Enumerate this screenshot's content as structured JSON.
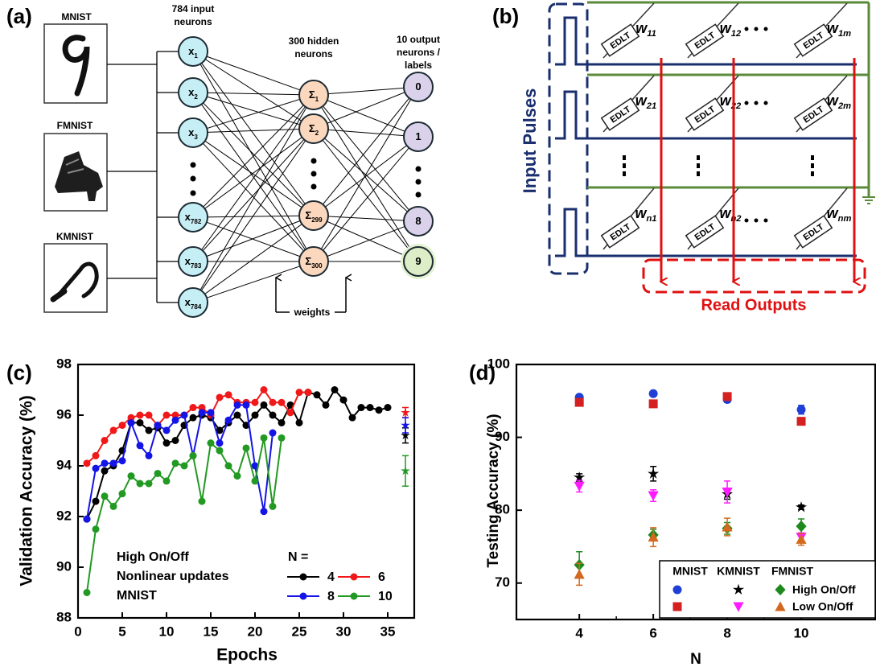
{
  "panel_a": {
    "label": "(a)",
    "images": [
      {
        "title": "MNIST"
      },
      {
        "title": "FMNIST"
      },
      {
        "title": "KMNIST"
      }
    ],
    "layers": [
      {
        "title": [
          "784 input",
          "neurons"
        ],
        "nodes": [
          {
            "base": "x",
            "sub": "1"
          },
          {
            "base": "x",
            "sub": "2"
          },
          {
            "base": "x",
            "sub": "3"
          },
          {
            "base": "x",
            "sub": "782"
          },
          {
            "base": "x",
            "sub": "783"
          },
          {
            "base": "x",
            "sub": "784"
          }
        ]
      },
      {
        "title": [
          "300 hidden",
          "neurons"
        ],
        "nodes": [
          {
            "base": "Σ",
            "sub": "1"
          },
          {
            "base": "Σ",
            "sub": "2"
          },
          {
            "base": "Σ",
            "sub": "299"
          },
          {
            "base": "Σ",
            "sub": "300"
          }
        ]
      },
      {
        "title": [
          "10 output",
          "neurons /",
          "labels"
        ],
        "nodes": [
          {
            "base": "0"
          },
          {
            "base": "1"
          },
          {
            "base": "8"
          },
          {
            "base": "9"
          }
        ]
      }
    ],
    "weights_label": "weights"
  },
  "panel_b": {
    "label": "(b)",
    "input_label": "Input Pulses",
    "output_label": "Read Outputs",
    "device_label": "EDLT",
    "weights": [
      [
        {
          "base": "w",
          "sub": "11"
        },
        {
          "base": "w",
          "sub": "12"
        },
        {
          "base": "w",
          "sub": "1m"
        }
      ],
      [
        {
          "base": "w",
          "sub": "21"
        },
        {
          "base": "w",
          "sub": "22"
        },
        {
          "base": "w",
          "sub": "2m"
        }
      ],
      [
        {
          "base": "w",
          "sub": "n1"
        },
        {
          "base": "w",
          "sub": "n2"
        },
        {
          "base": "w",
          "sub": "nm"
        }
      ]
    ]
  },
  "chart_data": [
    {
      "type": "line",
      "panel_label": "(c)",
      "xlabel": "Epochs",
      "ylabel": "Validation Accuracy (%)",
      "xlim": [
        0,
        38
      ],
      "xticks": [
        0,
        5,
        10,
        15,
        20,
        25,
        30,
        35
      ],
      "ylim": [
        88,
        98
      ],
      "yticks": [
        88,
        90,
        92,
        94,
        96,
        98
      ],
      "annotations": [
        "High On/Off",
        "Nonlinear updates",
        "MNIST"
      ],
      "legend_title": "N =",
      "final_x": 37,
      "series": [
        {
          "name": "4",
          "color": "#000000",
          "x": [
            1,
            2,
            3,
            4,
            5,
            6,
            7,
            8,
            9,
            10,
            11,
            12,
            13,
            14,
            15,
            16,
            17,
            18,
            19,
            20,
            21,
            22,
            23,
            24,
            25,
            26,
            27,
            28,
            29,
            30,
            31,
            32,
            33,
            34,
            35
          ],
          "values": [
            91.9,
            92.6,
            93.8,
            94.0,
            94.6,
            95.7,
            95.7,
            95.4,
            95.5,
            94.9,
            95.0,
            95.6,
            95.9,
            96.0,
            95.9,
            95.4,
            95.7,
            96.0,
            95.6,
            96.0,
            96.4,
            96.0,
            95.7,
            96.4,
            95.7,
            96.9,
            96.8,
            96.4,
            97.0,
            96.6,
            95.9,
            96.3,
            96.3,
            96.2,
            96.3
          ],
          "final": 95.2,
          "final_error": 0.3
        },
        {
          "name": "6",
          "color": "#f01818",
          "x": [
            1,
            2,
            3,
            4,
            5,
            6,
            7,
            8,
            9,
            10,
            11,
            12,
            13,
            14,
            15,
            16,
            17,
            18,
            19,
            20,
            21,
            22,
            23,
            24,
            25,
            26
          ],
          "values": [
            94.1,
            94.4,
            95.0,
            95.4,
            95.6,
            95.9,
            96.0,
            96.0,
            95.6,
            96.0,
            96.0,
            96.0,
            96.3,
            96.3,
            96.0,
            96.7,
            96.8,
            96.5,
            96.5,
            96.5,
            97.0,
            96.5,
            96.5,
            96.1,
            96.9,
            96.9
          ],
          "final": 96.1,
          "final_error": 0.2
        },
        {
          "name": "8",
          "color": "#1414e6",
          "x": [
            1,
            2,
            3,
            4,
            5,
            6,
            7,
            8,
            9,
            10,
            11,
            12,
            13,
            14,
            15,
            16,
            17,
            18,
            19,
            20,
            21,
            22
          ],
          "values": [
            91.9,
            93.9,
            94.1,
            94.1,
            94.2,
            95.7,
            94.8,
            94.4,
            95.6,
            95.4,
            95.8,
            96.0,
            94.4,
            96.1,
            96.1,
            94.9,
            95.8,
            96.4,
            96.4,
            94.0,
            92.2,
            95.3
          ],
          "final": 95.6,
          "final_error": 0.3
        },
        {
          "name": "10",
          "color": "#229922",
          "x": [
            1,
            2,
            3,
            4,
            5,
            6,
            7,
            8,
            9,
            10,
            11,
            12,
            13,
            14,
            15,
            16,
            17,
            18,
            19,
            20,
            21,
            22,
            23
          ],
          "values": [
            89.0,
            91.5,
            92.8,
            92.4,
            92.9,
            93.6,
            93.3,
            93.3,
            93.7,
            93.4,
            94.1,
            94.0,
            94.4,
            92.6,
            94.9,
            94.6,
            94.0,
            93.6,
            94.7,
            93.4,
            95.1,
            92.4,
            95.1
          ],
          "final": 93.8,
          "final_error": 0.6
        }
      ]
    },
    {
      "type": "scatter",
      "panel_label": "(d)",
      "xlabel": "N",
      "ylabel": "Testing Accuracy (%)",
      "xlim": [
        2.3,
        12
      ],
      "xticks": [
        4,
        6,
        8,
        10
      ],
      "xminorticks": [
        5,
        7,
        9
      ],
      "ylim": [
        65,
        100
      ],
      "yticks": [
        70,
        80,
        90,
        100
      ],
      "x": [
        4,
        6,
        8,
        10
      ],
      "legend": {
        "columns": [
          "MNIST",
          "KMNIST",
          "FMNIST"
        ],
        "rows": [
          "High On/Off",
          "Low On/Off"
        ]
      },
      "series": [
        [
          {
            "marker": "circle",
            "color": "#1f3fd6",
            "values": [
              95.5,
              96.0,
              95.2,
              93.8
            ],
            "errors": [
              0.3,
              0.3,
              0.4,
              0.6
            ]
          },
          {
            "marker": "star",
            "color": "#000000",
            "values": [
              84.5,
              85.0,
              82.2,
              80.4
            ],
            "errors": [
              0.5,
              1.0,
              0.7,
              0.3
            ]
          },
          {
            "marker": "diamond",
            "color": "#1e8a1e",
            "values": [
              72.5,
              76.6,
              77.5,
              77.8
            ],
            "errors": [
              1.8,
              0.8,
              0.8,
              1.0
            ]
          }
        ],
        [
          {
            "marker": "square",
            "color": "#d42020",
            "values": [
              94.8,
              94.6,
              95.6,
              92.2
            ],
            "errors": [
              0.3,
              0.5,
              0.3,
              0.3
            ]
          },
          {
            "marker": "triangle-down",
            "color": "#ff1aff",
            "values": [
              83.3,
              82.0,
              82.5,
              76.3
            ],
            "errors": [
              0.8,
              0.8,
              1.5,
              0.6
            ]
          },
          {
            "marker": "triangle-up",
            "color": "#d2691e",
            "values": [
              71.2,
              76.3,
              77.7,
              76.0
            ],
            "errors": [
              1.5,
              1.3,
              1.2,
              0.8
            ]
          }
        ]
      ]
    }
  ]
}
